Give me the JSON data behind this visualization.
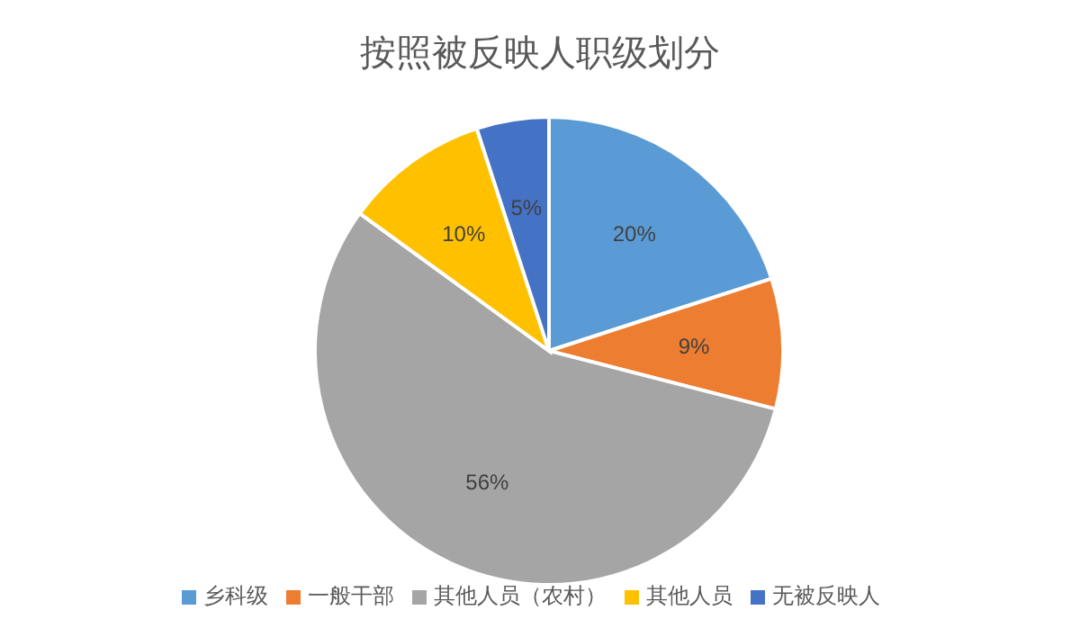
{
  "chart_data": {
    "type": "pie",
    "title": "按照被反映人职级划分",
    "categories": [
      "乡科级",
      "一般干部",
      "其他人员（农村）",
      "其他人员",
      "无被反映人"
    ],
    "values": [
      20,
      9,
      56,
      10,
      5
    ],
    "colors": [
      "#5b9bd5",
      "#ed7d31",
      "#a5a5a5",
      "#ffc000",
      "#4472c4"
    ],
    "value_labels": [
      "20%",
      "9%",
      "56%",
      "10%",
      "5%"
    ],
    "legend": "bottom"
  }
}
